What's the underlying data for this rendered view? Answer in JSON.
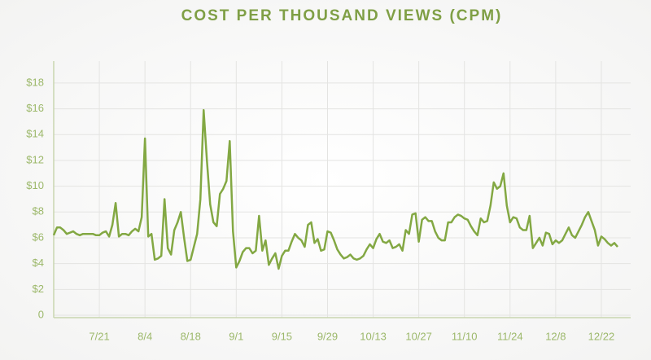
{
  "chart_data": {
    "type": "line",
    "title": "COST PER THOUSAND VIEWS (CPM)",
    "categories": [
      null,
      null,
      null,
      null,
      null,
      null,
      null,
      null,
      null,
      null,
      null,
      null,
      null,
      null,
      "7/21",
      null,
      null,
      null,
      null,
      null,
      null,
      null,
      null,
      null,
      null,
      null,
      null,
      null,
      "8/4",
      null,
      null,
      null,
      null,
      null,
      null,
      null,
      null,
      null,
      null,
      null,
      null,
      null,
      "8/18",
      null,
      null,
      null,
      null,
      null,
      null,
      null,
      null,
      null,
      null,
      null,
      null,
      null,
      "9/1",
      null,
      null,
      null,
      null,
      null,
      null,
      null,
      null,
      null,
      null,
      null,
      null,
      null,
      "9/15",
      null,
      null,
      null,
      null,
      null,
      null,
      null,
      null,
      null,
      null,
      null,
      null,
      null,
      "9/29",
      null,
      null,
      null,
      null,
      null,
      null,
      null,
      null,
      null,
      null,
      null,
      null,
      null,
      "10/13",
      null,
      null,
      null,
      null,
      null,
      null,
      null,
      null,
      null,
      null,
      null,
      null,
      null,
      "10/27",
      null,
      null,
      null,
      null,
      null,
      null,
      null,
      null,
      null,
      null,
      null,
      null,
      null,
      "11/10",
      null,
      null,
      null,
      null,
      null,
      null,
      null,
      null,
      null,
      null,
      null,
      null,
      null,
      "11/24",
      null,
      null,
      null,
      null,
      null,
      null,
      null,
      null,
      null,
      null,
      null,
      null,
      null,
      "12/8",
      null,
      null,
      null,
      null,
      null,
      null,
      null,
      null,
      null,
      null,
      null,
      null,
      null,
      "12/22",
      null,
      null,
      null,
      null,
      null,
      null,
      null,
      null,
      null
    ],
    "values": [
      6.2,
      6.8,
      6.8,
      6.6,
      6.3,
      6.4,
      6.5,
      6.3,
      6.2,
      6.3,
      6.3,
      6.3,
      6.3,
      6.2,
      6.2,
      6.4,
      6.5,
      6.1,
      7.0,
      8.7,
      6.1,
      6.3,
      6.3,
      6.2,
      6.5,
      6.7,
      6.5,
      7.6,
      13.7,
      6.1,
      6.3,
      4.3,
      4.4,
      4.6,
      9.0,
      5.2,
      4.7,
      6.6,
      7.2,
      8.0,
      6.0,
      4.2,
      4.3,
      5.3,
      6.3,
      9.0,
      15.9,
      12.0,
      8.6,
      7.2,
      6.9,
      9.4,
      9.8,
      10.4,
      13.5,
      6.5,
      3.7,
      4.2,
      4.9,
      5.2,
      5.2,
      4.8,
      5.0,
      7.7,
      5.0,
      5.8,
      3.9,
      4.4,
      4.8,
      3.6,
      4.6,
      5.0,
      5.0,
      5.7,
      6.3,
      6.0,
      5.8,
      5.3,
      7.0,
      7.2,
      5.6,
      5.9,
      5.0,
      5.1,
      6.5,
      6.4,
      5.8,
      5.1,
      4.7,
      4.4,
      4.5,
      4.7,
      4.4,
      4.3,
      4.4,
      4.6,
      5.1,
      5.5,
      5.2,
      5.9,
      6.3,
      5.7,
      5.6,
      5.8,
      5.2,
      5.3,
      5.5,
      5.0,
      6.6,
      6.3,
      7.8,
      7.9,
      5.7,
      7.4,
      7.6,
      7.3,
      7.3,
      6.5,
      6.0,
      5.8,
      5.8,
      7.2,
      7.2,
      7.6,
      7.8,
      7.7,
      7.5,
      7.4,
      6.9,
      6.5,
      6.2,
      7.5,
      7.2,
      7.3,
      8.5,
      10.3,
      9.8,
      10.0,
      11.0,
      8.5,
      7.2,
      7.6,
      7.5,
      6.8,
      6.6,
      6.6,
      7.7,
      5.2,
      5.6,
      6.0,
      5.4,
      6.4,
      6.3,
      5.5,
      5.8,
      5.6,
      5.8,
      6.3,
      6.8,
      6.2,
      6.0,
      6.5,
      7.0,
      7.6,
      8.0,
      7.3,
      6.6,
      5.4,
      6.1,
      5.9,
      5.6,
      5.4,
      5.6,
      5.3,
      null,
      null,
      null,
      null
    ],
    "color": "#83a843",
    "ylim": [
      0,
      19.7
    ],
    "yticks": [
      0,
      {
        "value": 2,
        "label": "$2"
      },
      {
        "value": 4,
        "label": "$4"
      },
      {
        "value": 6,
        "label": "$6"
      },
      {
        "value": 8,
        "label": "$8"
      },
      {
        "value": 10,
        "label": "$10"
      },
      {
        "value": 12,
        "label": "$12"
      },
      {
        "value": 14,
        "label": "$14"
      },
      {
        "value": 16,
        "label": "$16"
      },
      {
        "value": 18,
        "label": "$18"
      }
    ],
    "grid": true
  }
}
